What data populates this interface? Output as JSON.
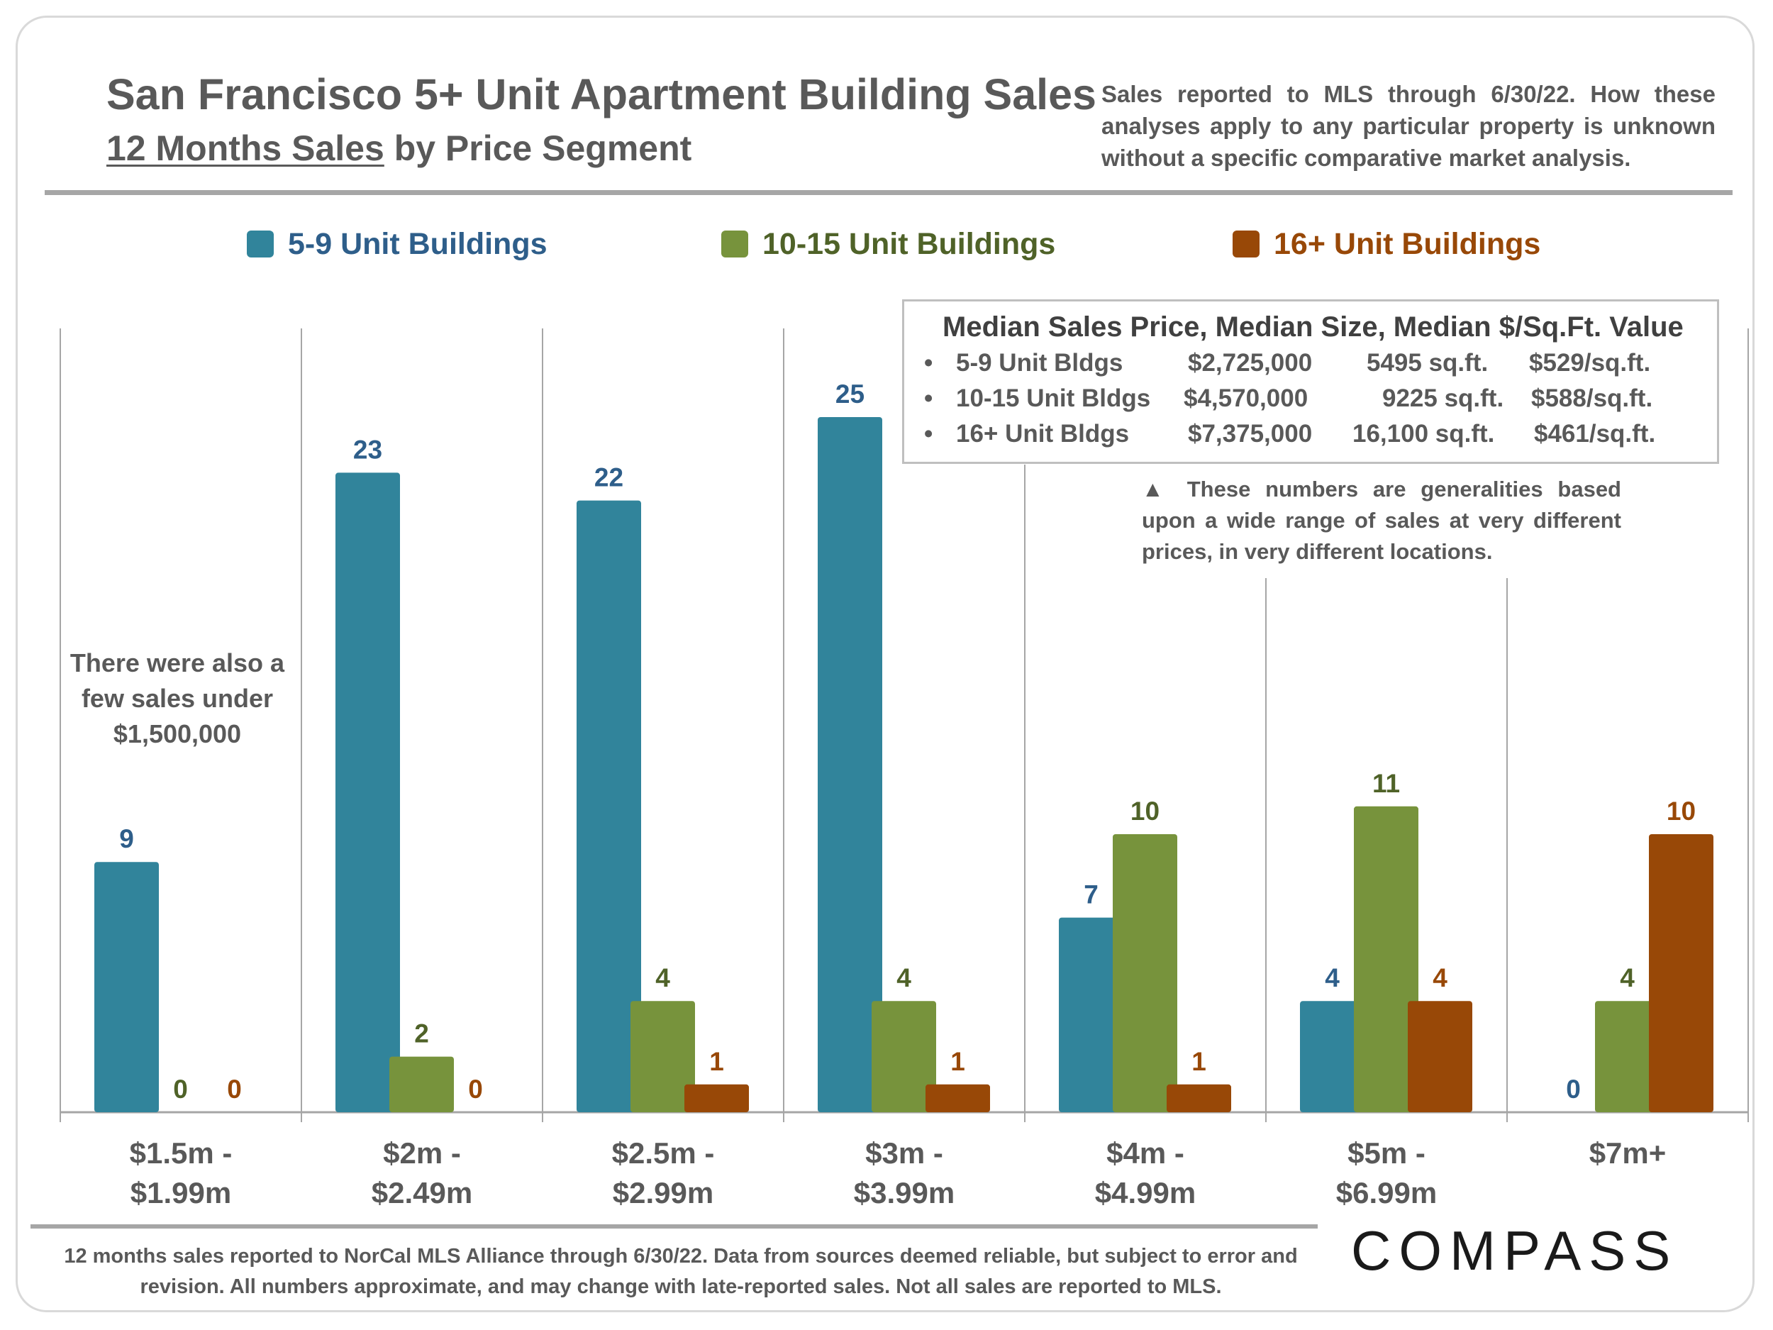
{
  "header": {
    "title": "San Francisco 5+ Unit Apartment Building Sales",
    "subtitle_underlined": "12 Months Sales",
    "subtitle_rest": " by Price Segment",
    "disclaimer": "Sales reported to MLS through 6/30/22. How these analyses apply to any particular property is unknown without a specific comparative market analysis."
  },
  "chart_data": {
    "type": "bar",
    "title": "San Francisco 5+ Unit Apartment Building Sales",
    "categories": [
      "$1.5m -\n$1.99m",
      "$2m -\n$2.49m",
      "$2.5m -\n$2.99m",
      "$3m -\n$3.99m",
      "$4m -\n$4.99m",
      "$5m -\n$6.99m",
      "$7m+"
    ],
    "series": [
      {
        "name": "5-9 Unit Buildings",
        "color": "#31849b",
        "label_color": "#2e5e8a",
        "values": [
          9,
          23,
          22,
          25,
          7,
          4,
          0
        ]
      },
      {
        "name": "10-15 Unit Buildings",
        "color": "#77933c",
        "label_color": "#4f6228",
        "values": [
          0,
          2,
          4,
          4,
          10,
          11,
          4
        ]
      },
      {
        "name": "16+ Unit Buildings",
        "color": "#984807",
        "label_color": "#984807",
        "values": [
          0,
          0,
          1,
          1,
          1,
          4,
          10
        ]
      }
    ],
    "ylim": [
      0,
      28
    ],
    "legend": "top",
    "grid": false
  },
  "infobox": {
    "title": "Median Sales Price, Median Size, Median $/Sq.Ft. Value",
    "rows": [
      {
        "bullet": "•",
        "name": "5-9 Unit Bldgs",
        "price": "$2,725,000",
        "size": "5495 sq.ft.",
        "ppsf": "$529/sq.ft."
      },
      {
        "bullet": "•",
        "name": "10-15 Unit Bldgs",
        "price": "$4,570,000",
        "size": "9225 sq.ft.",
        "ppsf": "$588/sq.ft."
      },
      {
        "bullet": "•",
        "name": "16+ Unit Bldgs",
        "price": "$7,375,000",
        "size": "16,100 sq.ft.",
        "ppsf": "$461/sq.ft."
      }
    ]
  },
  "note": "▲ These numbers are generalities based upon a wide range of sales at very different prices, in very different locations.",
  "annotation": "There were also a few sales under $1,500,000",
  "footer": "12 months sales reported to NorCal MLS Alliance through 6/30/22. Data from sources deemed reliable, but subject to error and revision. All numbers approximate, and may change with late-reported sales. Not all sales are reported to MLS.",
  "logo": "COMPASS"
}
